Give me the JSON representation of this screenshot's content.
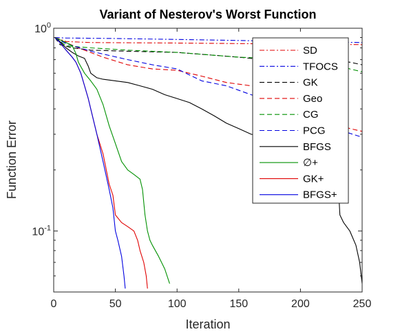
{
  "chart_data": {
    "type": "line",
    "title": "Variant of Nesterov's Worst Function",
    "xlabel": "Iteration",
    "ylabel": "Function Error",
    "xlim": [
      0,
      250
    ],
    "ylim": [
      0.05,
      1
    ],
    "yscale": "log",
    "grid": false,
    "legend_position": "top-right",
    "xticks": [
      {
        "value": 0,
        "label": "0"
      },
      {
        "value": 50,
        "label": "50"
      },
      {
        "value": 100,
        "label": "100"
      },
      {
        "value": 150,
        "label": "150"
      },
      {
        "value": 200,
        "label": "200"
      },
      {
        "value": 250,
        "label": "250"
      }
    ],
    "yticks": [
      {
        "value": 0.1,
        "base": "10",
        "exp": "-1"
      },
      {
        "value": 1,
        "base": "10",
        "exp": "0"
      }
    ],
    "series": [
      {
        "name": "SD",
        "color": "#e00000",
        "dash": "dashdot",
        "points": [
          [
            1,
            0.9
          ],
          [
            10,
            0.86
          ],
          [
            30,
            0.85
          ],
          [
            100,
            0.845
          ],
          [
            150,
            0.84
          ],
          [
            200,
            0.835
          ],
          [
            250,
            0.83
          ]
        ]
      },
      {
        "name": "TFOCS",
        "color": "#0000e0",
        "dash": "dashdot",
        "points": [
          [
            1,
            0.9
          ],
          [
            10,
            0.895
          ],
          [
            50,
            0.89
          ],
          [
            100,
            0.88
          ],
          [
            150,
            0.87
          ],
          [
            200,
            0.86
          ],
          [
            250,
            0.85
          ]
        ]
      },
      {
        "name": "GK",
        "color": "#000000",
        "dash": "dashed",
        "points": [
          [
            1,
            0.9
          ],
          [
            5,
            0.83
          ],
          [
            15,
            0.8
          ],
          [
            30,
            0.78
          ],
          [
            60,
            0.77
          ],
          [
            100,
            0.76
          ],
          [
            150,
            0.72
          ],
          [
            170,
            0.7
          ],
          [
            200,
            0.7
          ],
          [
            230,
            0.69
          ],
          [
            240,
            0.68
          ],
          [
            250,
            0.66
          ]
        ]
      },
      {
        "name": "Geo",
        "color": "#e00000",
        "dash": "dashed",
        "points": [
          [
            1,
            0.9
          ],
          [
            10,
            0.85
          ],
          [
            20,
            0.8
          ],
          [
            40,
            0.72
          ],
          [
            60,
            0.66
          ],
          [
            80,
            0.63
          ],
          [
            100,
            0.62
          ],
          [
            120,
            0.58
          ],
          [
            140,
            0.54
          ],
          [
            160,
            0.52
          ],
          [
            170,
            0.51
          ],
          [
            180,
            0.45
          ],
          [
            200,
            0.43
          ],
          [
            220,
            0.4
          ],
          [
            230,
            0.34
          ],
          [
            240,
            0.32
          ],
          [
            250,
            0.31
          ]
        ]
      },
      {
        "name": "CG",
        "color": "#009000",
        "dash": "dashed",
        "points": [
          [
            1,
            0.9
          ],
          [
            10,
            0.82
          ],
          [
            30,
            0.8
          ],
          [
            60,
            0.78
          ],
          [
            100,
            0.76
          ],
          [
            150,
            0.72
          ],
          [
            200,
            0.7
          ],
          [
            230,
            0.67
          ],
          [
            240,
            0.63
          ],
          [
            250,
            0.61
          ]
        ]
      },
      {
        "name": "PCG",
        "color": "#0000e0",
        "dash": "dashed",
        "points": [
          [
            1,
            0.9
          ],
          [
            10,
            0.84
          ],
          [
            30,
            0.77
          ],
          [
            60,
            0.7
          ],
          [
            80,
            0.66
          ],
          [
            100,
            0.63
          ],
          [
            120,
            0.55
          ],
          [
            140,
            0.52
          ],
          [
            160,
            0.47
          ],
          [
            180,
            0.43
          ],
          [
            200,
            0.41
          ],
          [
            220,
            0.35
          ],
          [
            235,
            0.31
          ],
          [
            250,
            0.29
          ]
        ]
      },
      {
        "name": "BFGS",
        "color": "#000000",
        "dash": "solid",
        "points": [
          [
            1,
            0.9
          ],
          [
            5,
            0.86
          ],
          [
            10,
            0.8
          ],
          [
            15,
            0.76
          ],
          [
            20,
            0.73
          ],
          [
            25,
            0.71
          ],
          [
            28,
            0.65
          ],
          [
            30,
            0.6
          ],
          [
            35,
            0.57
          ],
          [
            40,
            0.56
          ],
          [
            50,
            0.55
          ],
          [
            60,
            0.54
          ],
          [
            70,
            0.52
          ],
          [
            80,
            0.5
          ],
          [
            90,
            0.47
          ],
          [
            100,
            0.45
          ],
          [
            110,
            0.43
          ],
          [
            120,
            0.4
          ],
          [
            130,
            0.37
          ],
          [
            140,
            0.34
          ],
          [
            150,
            0.32
          ],
          [
            160,
            0.3
          ],
          [
            170,
            0.29
          ],
          [
            180,
            0.28
          ],
          [
            190,
            0.27
          ],
          [
            200,
            0.27
          ],
          [
            210,
            0.26
          ],
          [
            220,
            0.26
          ],
          [
            225,
            0.25
          ],
          [
            228,
            0.24
          ],
          [
            230,
            0.2
          ],
          [
            232,
            0.12
          ],
          [
            235,
            0.11
          ],
          [
            240,
            0.1
          ],
          [
            245,
            0.085
          ],
          [
            248,
            0.07
          ],
          [
            250,
            0.055
          ]
        ]
      },
      {
        "name": "∅+",
        "color": "#009000",
        "dash": "solid",
        "points": [
          [
            1,
            0.9
          ],
          [
            10,
            0.85
          ],
          [
            15,
            0.82
          ],
          [
            18,
            0.75
          ],
          [
            20,
            0.68
          ],
          [
            25,
            0.6
          ],
          [
            30,
            0.55
          ],
          [
            35,
            0.5
          ],
          [
            40,
            0.42
          ],
          [
            45,
            0.33
          ],
          [
            50,
            0.27
          ],
          [
            55,
            0.22
          ],
          [
            60,
            0.2
          ],
          [
            65,
            0.19
          ],
          [
            70,
            0.18
          ],
          [
            72,
            0.16
          ],
          [
            74,
            0.12
          ],
          [
            76,
            0.1
          ],
          [
            78,
            0.09
          ],
          [
            80,
            0.085
          ],
          [
            85,
            0.075
          ],
          [
            90,
            0.065
          ],
          [
            94,
            0.055
          ]
        ]
      },
      {
        "name": "GK+",
        "color": "#e00000",
        "dash": "solid",
        "points": [
          [
            1,
            0.9
          ],
          [
            5,
            0.85
          ],
          [
            10,
            0.78
          ],
          [
            15,
            0.72
          ],
          [
            18,
            0.68
          ],
          [
            22,
            0.6
          ],
          [
            25,
            0.52
          ],
          [
            28,
            0.45
          ],
          [
            30,
            0.4
          ],
          [
            35,
            0.3
          ],
          [
            40,
            0.24
          ],
          [
            45,
            0.17
          ],
          [
            48,
            0.15
          ],
          [
            50,
            0.12
          ],
          [
            55,
            0.11
          ],
          [
            60,
            0.105
          ],
          [
            65,
            0.1
          ],
          [
            68,
            0.09
          ],
          [
            70,
            0.08
          ],
          [
            73,
            0.07
          ],
          [
            75,
            0.06
          ],
          [
            76,
            0.052
          ]
        ]
      },
      {
        "name": "BFGS+",
        "color": "#0000e0",
        "dash": "solid",
        "points": [
          [
            1,
            0.9
          ],
          [
            5,
            0.85
          ],
          [
            10,
            0.78
          ],
          [
            15,
            0.72
          ],
          [
            18,
            0.68
          ],
          [
            22,
            0.6
          ],
          [
            25,
            0.52
          ],
          [
            28,
            0.45
          ],
          [
            30,
            0.4
          ],
          [
            35,
            0.3
          ],
          [
            40,
            0.22
          ],
          [
            45,
            0.16
          ],
          [
            48,
            0.13
          ],
          [
            50,
            0.1
          ],
          [
            52,
            0.09
          ],
          [
            55,
            0.075
          ],
          [
            57,
            0.06
          ],
          [
            58,
            0.052
          ]
        ]
      }
    ]
  }
}
